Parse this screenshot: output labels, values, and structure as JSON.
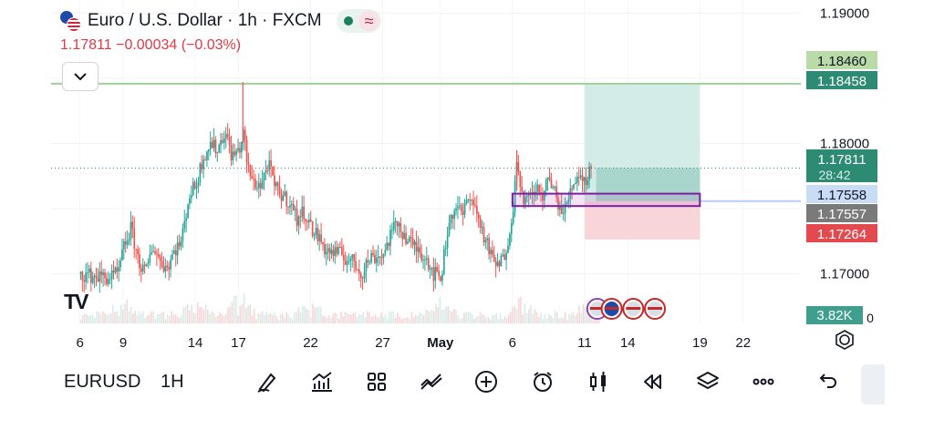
{
  "header": {
    "symbol_title": "Euro / U.S. Dollar · 1h · FXCM",
    "quote": "1.17811 −0.00034 (−0.03%)",
    "wave_glyph": "≈",
    "logo_text": "TV"
  },
  "toolbar": {
    "symbol": "EURUSD",
    "timeframe": "1H",
    "tools": [
      "draw-icon",
      "indicators-icon",
      "templates-icon",
      "compare-icon",
      "add-icon",
      "alert-icon",
      "candles-icon",
      "replay-icon",
      "layers-icon",
      "more-icon",
      "undo-icon"
    ]
  },
  "colors": {
    "up": "#26a69a",
    "down": "#ef5350",
    "accent": "#2962ff",
    "target": "#b2dfdb",
    "stop": "#f8c8cc"
  },
  "chart_data": {
    "type": "candlestick",
    "instrument": "EURUSD",
    "timeframe": "1h",
    "ylim": [
      1.1669,
      1.191
    ],
    "y_ticks": [
      1.19,
      1.18,
      1.17
    ],
    "y_tick_labels": [
      "1.19000",
      "1.18000",
      "1.17000"
    ],
    "x_ticks": [
      {
        "label": "6",
        "day": 6
      },
      {
        "label": "9",
        "day": 9
      },
      {
        "label": "14",
        "day": 14
      },
      {
        "label": "17",
        "day": 17
      },
      {
        "label": "22",
        "day": 22
      },
      {
        "label": "27",
        "day": 27
      },
      {
        "label": "May",
        "day": 31
      },
      {
        "label": "6",
        "day": 36
      },
      {
        "label": "11",
        "day": 41
      },
      {
        "label": "14",
        "day": 44
      },
      {
        "label": "19",
        "day": 49
      },
      {
        "label": "22",
        "day": 52
      }
    ],
    "horizontal_line": 1.18458,
    "last_price": 1.17811,
    "countdown": "28:42",
    "price_labels": [
      {
        "value": "1.18460",
        "price": 1.1846,
        "bg": "#b9dba8",
        "fg": "#131722"
      },
      {
        "value": "1.18458",
        "price": 1.18458,
        "bg": "#2e8b73",
        "fg": "#ffffff"
      },
      {
        "value": "1.17811",
        "price": 1.17811,
        "bg": "#2e8b73",
        "fg": "#ffffff"
      },
      {
        "value": "1.17558",
        "price": 1.17558,
        "bg": "#c9dcf6",
        "fg": "#131722"
      },
      {
        "value": "1.17557",
        "price": 1.17557,
        "bg": "#7a7a7a",
        "fg": "#ffffff"
      },
      {
        "value": "1.17264",
        "price": 1.17264,
        "bg": "#e34a50",
        "fg": "#ffffff"
      }
    ],
    "volume_label": "3.82K",
    "volume_zero_label": "0",
    "position": {
      "entry": 1.17557,
      "target": 1.18458,
      "stop": 1.17264,
      "start_day": 41,
      "end_day": 49
    },
    "highlight_box": {
      "top": 1.17615,
      "bottom": 1.1752,
      "start_day": 36,
      "end_day": 49
    },
    "path_points": [
      [
        6,
        1.17
      ],
      [
        7,
        1.1698
      ],
      [
        8,
        1.1697
      ],
      [
        8.6,
        1.17
      ],
      [
        9,
        1.172
      ],
      [
        9.5,
        1.1735
      ],
      [
        10,
        1.171
      ],
      [
        10.5,
        1.17
      ],
      [
        11,
        1.1722
      ],
      [
        11.5,
        1.171
      ],
      [
        12,
        1.1705
      ],
      [
        12.5,
        1.1718
      ],
      [
        13,
        1.1725
      ],
      [
        13.5,
        1.176
      ],
      [
        14,
        1.1768
      ],
      [
        14.5,
        1.179
      ],
      [
        15,
        1.18
      ],
      [
        15.5,
        1.1795
      ],
      [
        16,
        1.181
      ],
      [
        16.5,
        1.179
      ],
      [
        17,
        1.1795
      ],
      [
        17.3,
        1.1808
      ],
      [
        17.6,
        1.178
      ],
      [
        18,
        1.177
      ],
      [
        18.5,
        1.1768
      ],
      [
        19,
        1.1785
      ],
      [
        19.5,
        1.1765
      ],
      [
        20,
        1.176
      ],
      [
        20.5,
        1.1755
      ],
      [
        21,
        1.1742
      ],
      [
        21.5,
        1.1748
      ],
      [
        22,
        1.1735
      ],
      [
        22.5,
        1.1728
      ],
      [
        23,
        1.1718
      ],
      [
        24,
        1.1715
      ],
      [
        25,
        1.1708
      ],
      [
        25.5,
        1.17
      ],
      [
        26,
        1.1712
      ],
      [
        27,
        1.1715
      ],
      [
        27.5,
        1.173
      ],
      [
        28,
        1.174
      ],
      [
        28.5,
        1.1728
      ],
      [
        29,
        1.1722
      ],
      [
        29.5,
        1.1718
      ],
      [
        30,
        1.1712
      ],
      [
        30.5,
        1.17
      ],
      [
        31,
        1.1698
      ],
      [
        31.5,
        1.1738
      ],
      [
        32,
        1.1752
      ],
      [
        32.5,
        1.1745
      ],
      [
        33,
        1.1762
      ],
      [
        33.5,
        1.1745
      ],
      [
        34,
        1.1728
      ],
      [
        34.5,
        1.1712
      ],
      [
        35,
        1.1705
      ],
      [
        35.5,
        1.1718
      ],
      [
        36,
        1.1752
      ],
      [
        36.3,
        1.179
      ],
      [
        36.6,
        1.176
      ],
      [
        37,
        1.1755
      ],
      [
        37.5,
        1.1765
      ],
      [
        38,
        1.176
      ],
      [
        38.5,
        1.1773
      ],
      [
        39,
        1.1758
      ],
      [
        39.5,
        1.1745
      ],
      [
        40,
        1.1765
      ],
      [
        40.5,
        1.1778
      ],
      [
        41,
        1.177
      ],
      [
        41.3,
        1.1782
      ],
      [
        41.5,
        1.1781
      ]
    ],
    "volume_spikes": [
      [
        17,
        0.9
      ],
      [
        9,
        0.55
      ],
      [
        14,
        0.5
      ],
      [
        22,
        0.45
      ],
      [
        31,
        0.5
      ],
      [
        36.5,
        0.55
      ],
      [
        41,
        0.4
      ]
    ],
    "event_icons_days": [
      41.5,
      42.5,
      44,
      45.5
    ]
  }
}
